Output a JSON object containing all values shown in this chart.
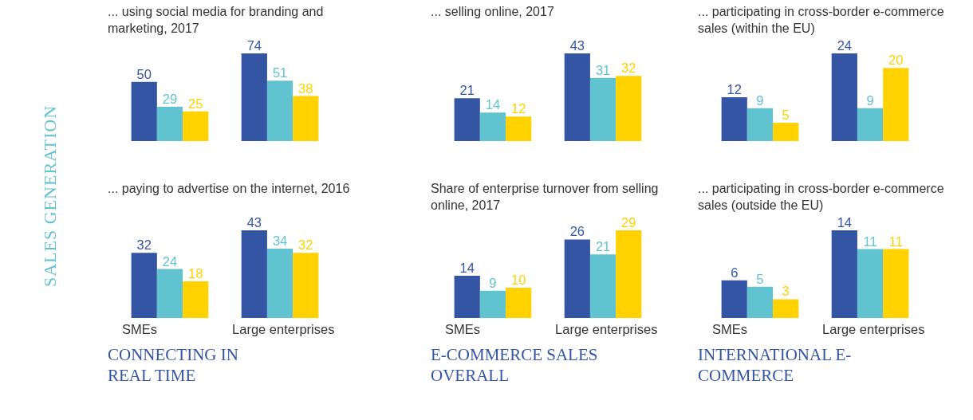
{
  "chart_data": [
    {
      "type": "bar",
      "title": "... using social media for branding and marketing, 2017",
      "categories": [
        null,
        null
      ],
      "data_labels": true,
      "tick_labels": false,
      "annotations": [
        "SALES GENERATION"
      ],
      "series": [
        {
          "color": "#3455a4",
          "values": [
            50,
            74
          ]
        },
        {
          "color": "#62c3d0",
          "values": [
            29,
            51
          ]
        },
        {
          "color": "#ffd200",
          "values": [
            25,
            38
          ]
        }
      ]
    },
    {
      "type": "bar",
      "title": "... selling online, 2017",
      "categories": [
        null,
        null
      ],
      "data_labels": true,
      "tick_labels": false,
      "series": [
        {
          "color": "#3455a4",
          "values": [
            21,
            43
          ]
        },
        {
          "color": "#62c3d0",
          "values": [
            14,
            31
          ]
        },
        {
          "color": "#ffd200",
          "values": [
            12,
            32
          ]
        }
      ]
    },
    {
      "type": "bar",
      "title": "... participating in cross-border e-commerce sales (within the EU)",
      "categories": [
        null,
        null
      ],
      "data_labels": true,
      "tick_labels": false,
      "series": [
        {
          "color": "#3455a4",
          "values": [
            12,
            24
          ]
        },
        {
          "color": "#62c3d0",
          "values": [
            9,
            9
          ]
        },
        {
          "color": "#ffd200",
          "values": [
            5,
            20
          ]
        }
      ]
    },
    {
      "type": "bar",
      "title": "... paying to advertise on the internet, 2016",
      "categories": [
        "SMEs",
        "Large enterprises"
      ],
      "data_labels": true,
      "tick_labels": "x",
      "annotations": [
        "CONNECTING IN REAL TIME"
      ],
      "series": [
        {
          "color": "#3455a4",
          "values": [
            32,
            43
          ]
        },
        {
          "color": "#62c3d0",
          "values": [
            24,
            34
          ]
        },
        {
          "color": "#ffd200",
          "values": [
            18,
            32
          ]
        }
      ]
    },
    {
      "type": "bar",
      "title": "Share of enterprise turnover from selling online, 2017",
      "categories": [
        "SMEs",
        "Large enterprises"
      ],
      "data_labels": true,
      "tick_labels": "x",
      "annotations": [
        "E-COMMERCE SALES OVERALL"
      ],
      "series": [
        {
          "color": "#3455a4",
          "values": [
            14,
            26
          ]
        },
        {
          "color": "#62c3d0",
          "values": [
            9,
            21
          ]
        },
        {
          "color": "#ffd200",
          "values": [
            10,
            29
          ]
        }
      ]
    },
    {
      "type": "bar",
      "title": "... participating in cross-border e-commerce sales (outside the EU)",
      "categories": [
        "SMEs",
        "Large enterprises"
      ],
      "data_labels": true,
      "tick_labels": "x",
      "annotations": [
        "INTERNATIONAL E-COMMERCE"
      ],
      "series": [
        {
          "color": "#3455a4",
          "values": [
            6,
            14
          ]
        },
        {
          "color": "#62c3d0",
          "values": [
            5,
            11
          ]
        },
        {
          "color": "#ffd200",
          "values": [
            3,
            11
          ]
        }
      ]
    }
  ]
}
